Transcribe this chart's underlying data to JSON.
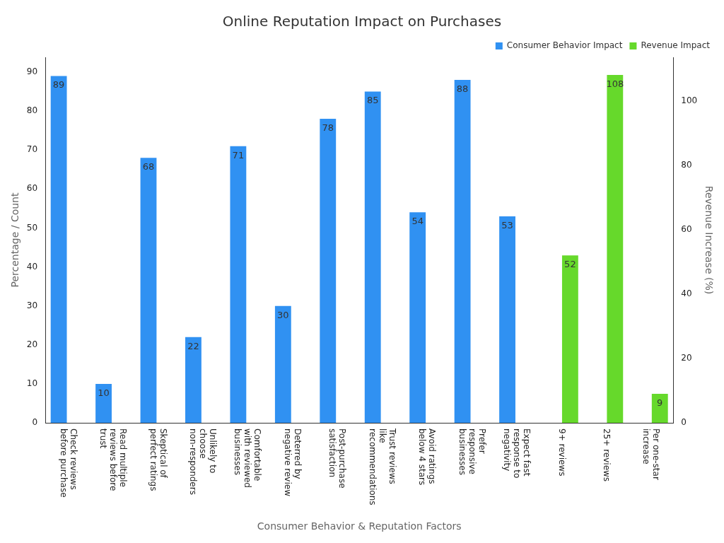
{
  "chart_data": {
    "type": "bar",
    "title": "Online Reputation Impact on Purchases",
    "xlabel": "Consumer Behavior & Reputation Factors",
    "ylabel": "Percentage / Count",
    "y2label": "Revenue Increase (%)",
    "categories": [
      "Check reviews before purchase",
      "Read multiple reviews before trust",
      "Skeptical of perfect ratings",
      "Unlikely to choose non-responders",
      "Comfortable with reviewed businesses",
      "Deterred by negative review",
      "Post-purchase satisfaction",
      "Trust reviews like recommendations",
      "Avoid ratings below 4 stars",
      "Prefer responsive businesses",
      "Expect fast response to negativity",
      "9+ reviews",
      "25+ reviews",
      "Per one-star increase"
    ],
    "series": [
      {
        "name": "Consumer Behavior Impact",
        "color": "#3091f2",
        "values": [
          89,
          10,
          68,
          22,
          71,
          30,
          78,
          85,
          54,
          88,
          53,
          null,
          null,
          null
        ]
      },
      {
        "name": "Revenue Impact",
        "color": "#66d92b",
        "axis": "y2",
        "values": [
          null,
          null,
          null,
          null,
          null,
          null,
          null,
          null,
          null,
          null,
          null,
          52,
          108,
          9
        ]
      }
    ],
    "ylim": [
      0,
      93.8
    ],
    "yticks": [
      0,
      10,
      20,
      30,
      40,
      50,
      60,
      70,
      80,
      90
    ],
    "y2lim": [
      0,
      113.5
    ],
    "y2ticks": [
      0,
      20,
      40,
      60,
      80,
      100
    ],
    "data_labels": true,
    "legend": "top right",
    "grid": false
  }
}
